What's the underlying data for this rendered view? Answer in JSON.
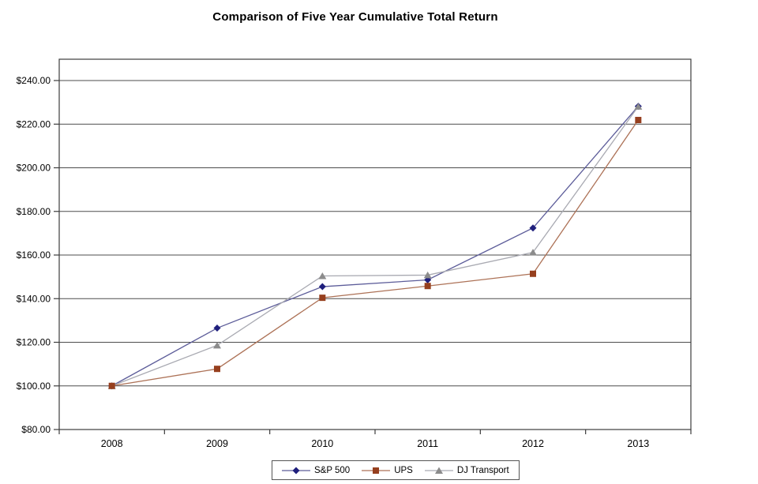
{
  "chart_data": {
    "type": "line",
    "title": "Comparison of Five Year Cumulative Total Return",
    "categories": [
      "2008",
      "2009",
      "2010",
      "2011",
      "2012",
      "2013"
    ],
    "series": [
      {
        "name": "S&P 500",
        "marker": "diamond",
        "line_color": "#5c5c99",
        "marker_color": "#1f1f7d",
        "values": [
          100.0,
          126.5,
          145.5,
          148.6,
          172.4,
          228.2
        ]
      },
      {
        "name": "UPS",
        "marker": "square",
        "line_color": "#ad7257",
        "marker_color": "#963f1e",
        "values": [
          100.0,
          107.8,
          140.4,
          145.8,
          151.4,
          221.9
        ]
      },
      {
        "name": "DJ Transport",
        "marker": "triangle",
        "line_color": "#a9aab2",
        "marker_color": "#8c8c8c",
        "values": [
          100.0,
          118.6,
          150.4,
          150.8,
          161.2,
          228.1
        ]
      }
    ],
    "y_axis": {
      "min": 80,
      "max": 240,
      "step": 20,
      "tick_labels": [
        "$80.00",
        "$100.00",
        "$120.00",
        "$140.00",
        "$160.00",
        "$180.00",
        "$200.00",
        "$220.00",
        "$240.00"
      ]
    },
    "x_axis": {
      "tick_labels": [
        "2008",
        "2009",
        "2010",
        "2011",
        "2012",
        "2013"
      ]
    },
    "grid": "horizontal",
    "legend_position": "bottom",
    "colors": {
      "grid": "#4d4d4d",
      "axis": "#3c3c3c",
      "text": "#000000",
      "background": "#ffffff"
    }
  }
}
